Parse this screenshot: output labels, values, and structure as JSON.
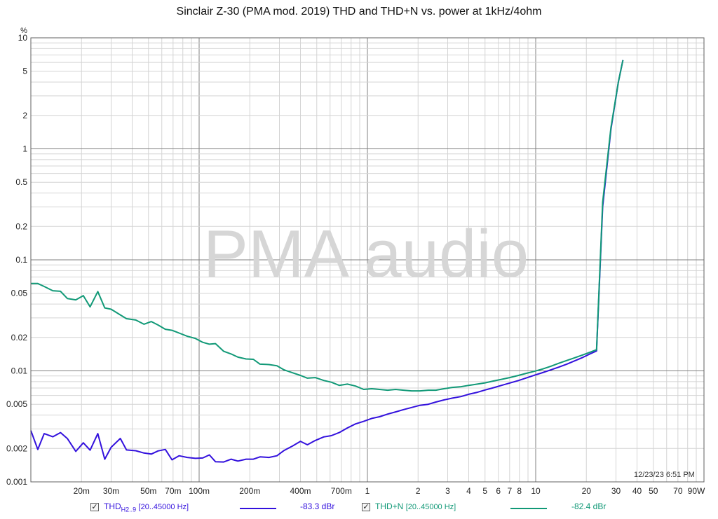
{
  "chart_data": {
    "type": "line",
    "title": "Sinclair Z-30 (PMA mod. 2019) THD and THD+N vs. power at 1kHz/4ohm",
    "ylabel": "%",
    "xlabel": "",
    "xscale": "log",
    "yscale": "log",
    "xlim": [
      0.01,
      100
    ],
    "ylim": [
      0.001,
      10
    ],
    "grid": true,
    "legend_position": "bottom",
    "watermark": "PMA audio",
    "timestamp": "12/23/23 6:51 PM",
    "x_ticks": [
      {
        "value": 0.02,
        "label": "20m"
      },
      {
        "value": 0.03,
        "label": "30m"
      },
      {
        "value": 0.05,
        "label": "50m"
      },
      {
        "value": 0.07,
        "label": "70m"
      },
      {
        "value": 0.1,
        "label": "100m"
      },
      {
        "value": 0.2,
        "label": "200m"
      },
      {
        "value": 0.4,
        "label": "400m"
      },
      {
        "value": 0.7,
        "label": "700m"
      },
      {
        "value": 1,
        "label": "1"
      },
      {
        "value": 2,
        "label": "2"
      },
      {
        "value": 3,
        "label": "3"
      },
      {
        "value": 4,
        "label": "4"
      },
      {
        "value": 5,
        "label": "5"
      },
      {
        "value": 6,
        "label": "6"
      },
      {
        "value": 7,
        "label": "7"
      },
      {
        "value": 8,
        "label": "8"
      },
      {
        "value": 10,
        "label": "10"
      },
      {
        "value": 20,
        "label": "20"
      },
      {
        "value": 30,
        "label": "30"
      },
      {
        "value": 40,
        "label": "40"
      },
      {
        "value": 50,
        "label": "50"
      },
      {
        "value": 70,
        "label": "70"
      },
      {
        "value": 90,
        "label": "90W"
      }
    ],
    "y_ticks": [
      {
        "value": 10,
        "label": "10"
      },
      {
        "value": 5,
        "label": "5"
      },
      {
        "value": 2,
        "label": "2"
      },
      {
        "value": 1,
        "label": "1"
      },
      {
        "value": 0.5,
        "label": "0.5"
      },
      {
        "value": 0.2,
        "label": "0.2"
      },
      {
        "value": 0.1,
        "label": "0.1"
      },
      {
        "value": 0.05,
        "label": "0.05"
      },
      {
        "value": 0.02,
        "label": "0.02"
      },
      {
        "value": 0.01,
        "label": "0.01"
      },
      {
        "value": 0.005,
        "label": "0.005"
      },
      {
        "value": 0.002,
        "label": "0.002"
      },
      {
        "value": 0.001,
        "label": "0.001"
      }
    ],
    "series": [
      {
        "name": "THD",
        "name_sub": "H2..9",
        "name_range": "[20..45000 Hz]",
        "value_label": "-83.3 dBr",
        "color": "#3311dd",
        "points": [
          [
            0.01,
            0.0029
          ],
          [
            0.011,
            0.00196
          ],
          [
            0.012,
            0.00272
          ],
          [
            0.0135,
            0.00255
          ],
          [
            0.015,
            0.00278
          ],
          [
            0.0165,
            0.00245
          ],
          [
            0.0185,
            0.00188
          ],
          [
            0.0205,
            0.00225
          ],
          [
            0.0225,
            0.00193
          ],
          [
            0.025,
            0.00272
          ],
          [
            0.0275,
            0.0016
          ],
          [
            0.03,
            0.00205
          ],
          [
            0.034,
            0.00246
          ],
          [
            0.037,
            0.00194
          ],
          [
            0.042,
            0.00191
          ],
          [
            0.047,
            0.00182
          ],
          [
            0.052,
            0.00178
          ],
          [
            0.057,
            0.0019
          ],
          [
            0.063,
            0.00196
          ],
          [
            0.069,
            0.00158
          ],
          [
            0.076,
            0.00172
          ],
          [
            0.085,
            0.00166
          ],
          [
            0.095,
            0.00163
          ],
          [
            0.105,
            0.00164
          ],
          [
            0.115,
            0.00175
          ],
          [
            0.125,
            0.00152
          ],
          [
            0.14,
            0.00151
          ],
          [
            0.155,
            0.0016
          ],
          [
            0.17,
            0.00154
          ],
          [
            0.19,
            0.0016
          ],
          [
            0.21,
            0.0016
          ],
          [
            0.23,
            0.00168
          ],
          [
            0.26,
            0.00166
          ],
          [
            0.29,
            0.00172
          ],
          [
            0.32,
            0.00192
          ],
          [
            0.36,
            0.00211
          ],
          [
            0.4,
            0.00232
          ],
          [
            0.44,
            0.00216
          ],
          [
            0.49,
            0.00236
          ],
          [
            0.55,
            0.00254
          ],
          [
            0.61,
            0.00261
          ],
          [
            0.68,
            0.00278
          ],
          [
            0.76,
            0.00306
          ],
          [
            0.85,
            0.00333
          ],
          [
            0.95,
            0.00351
          ],
          [
            1.06,
            0.00373
          ],
          [
            1.18,
            0.00386
          ],
          [
            1.32,
            0.00408
          ],
          [
            1.47,
            0.00427
          ],
          [
            1.64,
            0.00448
          ],
          [
            1.83,
            0.00468
          ],
          [
            2.05,
            0.00489
          ],
          [
            2.3,
            0.005
          ],
          [
            2.55,
            0.00524
          ],
          [
            2.85,
            0.00547
          ],
          [
            3.2,
            0.00568
          ],
          [
            3.6,
            0.00587
          ],
          [
            4.0,
            0.00616
          ],
          [
            4.5,
            0.00641
          ],
          [
            5.0,
            0.00673
          ],
          [
            5.6,
            0.00705
          ],
          [
            6.3,
            0.00741
          ],
          [
            7.0,
            0.00777
          ],
          [
            7.9,
            0.00818
          ],
          [
            8.8,
            0.00863
          ],
          [
            9.8,
            0.00912
          ],
          [
            11,
            0.00965
          ],
          [
            12.3,
            0.0102
          ],
          [
            13.7,
            0.0108
          ],
          [
            15.3,
            0.0115
          ],
          [
            17,
            0.0123
          ],
          [
            19,
            0.0132
          ],
          [
            21,
            0.0142
          ],
          [
            23,
            0.0151
          ],
          [
            25,
            0.3
          ],
          [
            28,
            1.5
          ],
          [
            31,
            4.0
          ],
          [
            33,
            6.3
          ]
        ]
      },
      {
        "name": "THD+N",
        "name_range": "[20..45000 Hz]",
        "value_label": "-82.4 dBr",
        "color": "#119977",
        "points": [
          [
            0.01,
            0.0612
          ],
          [
            0.011,
            0.0612
          ],
          [
            0.012,
            0.0576
          ],
          [
            0.0135,
            0.0527
          ],
          [
            0.015,
            0.0521
          ],
          [
            0.0165,
            0.0448
          ],
          [
            0.0185,
            0.0436
          ],
          [
            0.0205,
            0.0476
          ],
          [
            0.0225,
            0.0377
          ],
          [
            0.025,
            0.0518
          ],
          [
            0.0275,
            0.0369
          ],
          [
            0.03,
            0.0359
          ],
          [
            0.034,
            0.0319
          ],
          [
            0.037,
            0.0295
          ],
          [
            0.042,
            0.0287
          ],
          [
            0.047,
            0.0263
          ],
          [
            0.052,
            0.0278
          ],
          [
            0.057,
            0.0259
          ],
          [
            0.063,
            0.0237
          ],
          [
            0.069,
            0.0232
          ],
          [
            0.076,
            0.0219
          ],
          [
            0.085,
            0.0205
          ],
          [
            0.095,
            0.0196
          ],
          [
            0.105,
            0.0181
          ],
          [
            0.115,
            0.0174
          ],
          [
            0.125,
            0.0176
          ],
          [
            0.14,
            0.015
          ],
          [
            0.155,
            0.0142
          ],
          [
            0.17,
            0.0133
          ],
          [
            0.19,
            0.0128
          ],
          [
            0.21,
            0.0127
          ],
          [
            0.23,
            0.0115
          ],
          [
            0.26,
            0.0114
          ],
          [
            0.29,
            0.0111
          ],
          [
            0.32,
            0.0102
          ],
          [
            0.36,
            0.0096
          ],
          [
            0.4,
            0.0091
          ],
          [
            0.44,
            0.0086
          ],
          [
            0.49,
            0.0087
          ],
          [
            0.55,
            0.0082
          ],
          [
            0.61,
            0.0079
          ],
          [
            0.68,
            0.0074
          ],
          [
            0.76,
            0.0076
          ],
          [
            0.85,
            0.0073
          ],
          [
            0.95,
            0.0068
          ],
          [
            1.06,
            0.0069
          ],
          [
            1.18,
            0.0068
          ],
          [
            1.32,
            0.0067
          ],
          [
            1.47,
            0.0068
          ],
          [
            1.64,
            0.0067
          ],
          [
            1.83,
            0.0066
          ],
          [
            2.05,
            0.0066
          ],
          [
            2.3,
            0.0067
          ],
          [
            2.55,
            0.0067
          ],
          [
            2.85,
            0.0069
          ],
          [
            3.2,
            0.0071
          ],
          [
            3.6,
            0.0072
          ],
          [
            4.0,
            0.0074
          ],
          [
            4.5,
            0.0076
          ],
          [
            5.0,
            0.0078
          ],
          [
            5.6,
            0.0081
          ],
          [
            6.3,
            0.0084
          ],
          [
            7.0,
            0.0087
          ],
          [
            7.9,
            0.0091
          ],
          [
            8.8,
            0.0095
          ],
          [
            9.8,
            0.0099
          ],
          [
            11,
            0.0104
          ],
          [
            12.3,
            0.011
          ],
          [
            13.7,
            0.0117
          ],
          [
            15.3,
            0.0124
          ],
          [
            17,
            0.0131
          ],
          [
            19,
            0.0139
          ],
          [
            21,
            0.0147
          ],
          [
            23,
            0.0155
          ],
          [
            25,
            0.33
          ],
          [
            28,
            1.55
          ],
          [
            31,
            4.0
          ],
          [
            33,
            6.3
          ]
        ]
      }
    ]
  }
}
